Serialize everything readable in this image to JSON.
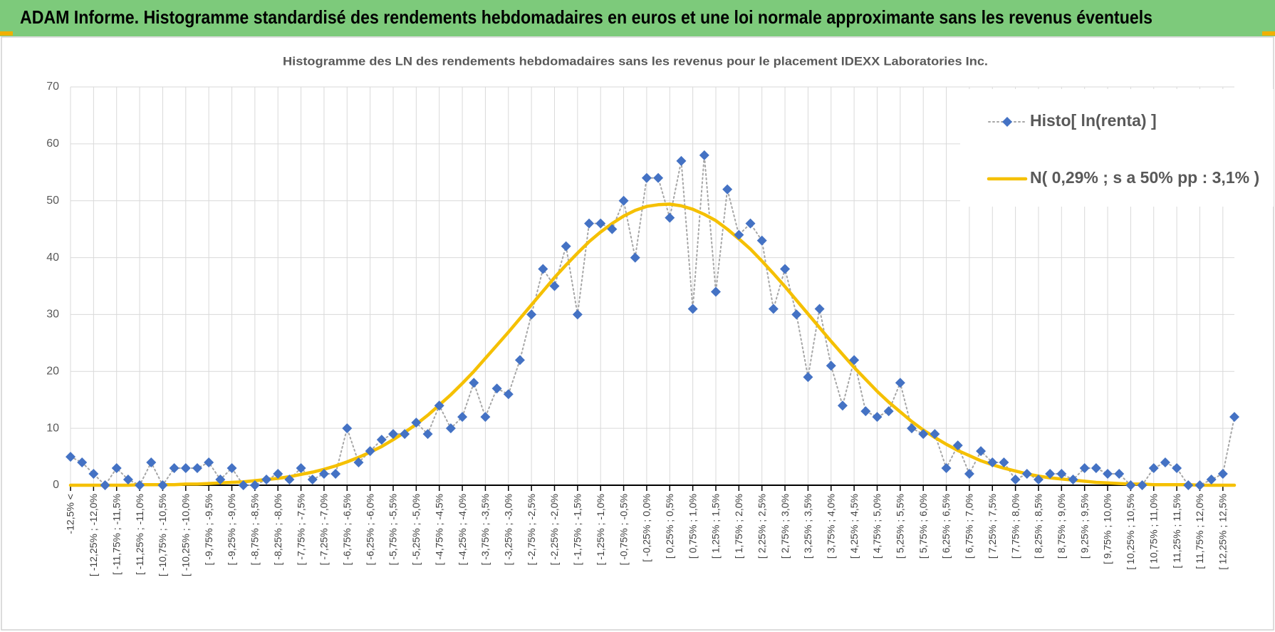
{
  "header": {
    "title": "ADAM Informe. Histogramme standardisé des rendements hebdomadaires en euros et une loi normale approximante sans les revenus éventuels"
  },
  "chart_data": {
    "type": "line",
    "title": "Histogramme des LN des rendements hebdomadaires sans les revenus pour le placement IDEXX Laboratories Inc.",
    "categories": [
      "-12,5% <",
      null,
      "[ -12,25% ; -12,0%",
      null,
      "[ -11,75% ; -11,5%",
      null,
      "[ -11,25% ; -11,0%",
      null,
      "[ -10,75% ; -10,5%",
      null,
      "[ -10,25% ; -10,0%",
      null,
      "[ -9,75% ; -9,5%",
      null,
      "[ -9,25% ; -9,0%",
      null,
      "[ -8,75% ; -8,5%",
      null,
      "[ -8,25% ; -8,0%",
      null,
      "[ -7,75% ; -7,5%",
      null,
      "[ -7,25% ; -7,0%",
      null,
      "[ -6,75% ; -6,5%",
      null,
      "[ -6,25% ; -6,0%",
      null,
      "[ -5,75% ; -5,5%",
      null,
      "[ -5,25% ; -5,0%",
      null,
      "[ -4,75% ; -4,5%",
      null,
      "[ -4,25% ; -4,0%",
      null,
      "[ -3,75% ; -3,5%",
      null,
      "[ -3,25% ; -3,0%",
      null,
      "[ -2,75% ; -2,5%",
      null,
      "[ -2,25% ; -2,0%",
      null,
      "[ -1,75% ; -1,5%",
      null,
      "[ -1,25% ; -1,0%",
      null,
      "[ -0,75% ; -0,5%",
      null,
      "[ -0,25% ; 0,0%",
      null,
      "[ 0,25% ; 0,5%",
      null,
      "[ 0,75% ; 1,0%",
      null,
      "[ 1,25% ; 1,5%",
      null,
      "[ 1,75% ; 2,0%",
      null,
      "[ 2,25% ; 2,5%",
      null,
      "[ 2,75% ; 3,0%",
      null,
      "[ 3,25% ; 3,5%",
      null,
      "[ 3,75% ; 4,0%",
      null,
      "[ 4,25% ; 4,5%",
      null,
      "[ 4,75% ; 5,0%",
      null,
      "[ 5,25% ; 5,5%",
      null,
      "[ 5,75% ; 6,0%",
      null,
      "[ 6,25% ; 6,5%",
      null,
      "[ 6,75% ; 7,0%",
      null,
      "[ 7,25% ; 7,5%",
      null,
      "[ 7,75% ; 8,0%",
      null,
      "[ 8,25% ; 8,5%",
      null,
      "[ 8,75% ; 9,0%",
      null,
      "[ 9,25% ; 9,5%",
      null,
      "[ 9,75% ; 10,0%",
      null,
      "[ 10,25% ; 10,5%",
      null,
      "[ 10,75% ; 11,0%",
      null,
      "[ 11,25% ; 11,5%",
      null,
      "[ 11,75% ; 12,0%",
      null,
      "[ 12,25% ; 12,5%",
      null
    ],
    "series": [
      {
        "name": "Histo[ ln(renta) ]",
        "color": "#4472c4",
        "line_color": "#a6a6a6",
        "line_style": "dotted",
        "marker": "diamond",
        "values": [
          5,
          4,
          2,
          0,
          3,
          1,
          0,
          4,
          0,
          3,
          3,
          3,
          4,
          1,
          3,
          0,
          0,
          1,
          2,
          1,
          3,
          1,
          2,
          2,
          10,
          4,
          6,
          8,
          9,
          9,
          11,
          9,
          14,
          10,
          12,
          18,
          12,
          17,
          16,
          22,
          30,
          38,
          35,
          42,
          30,
          46,
          46,
          45,
          50,
          40,
          54,
          54,
          47,
          57,
          31,
          58,
          34,
          52,
          44,
          46,
          43,
          31,
          38,
          30,
          19,
          31,
          21,
          14,
          22,
          13,
          12,
          13,
          18,
          10,
          9,
          9,
          3,
          7,
          2,
          6,
          4,
          4,
          1,
          2,
          1,
          2,
          2,
          1,
          3,
          3,
          2,
          2,
          0,
          0,
          3,
          4,
          3,
          0,
          0,
          1,
          2,
          12
        ]
      },
      {
        "name": "N( 0,29% ; s a 50% pp : 3,1% )",
        "color": "#f5c000",
        "line_style": "solid",
        "marker": "none",
        "values": [
          0,
          0,
          0,
          0,
          0,
          0,
          0.1,
          0.1,
          0.1,
          0.1,
          0.2,
          0.2,
          0.3,
          0.4,
          0.5,
          0.6,
          0.8,
          1.0,
          1.2,
          1.5,
          1.9,
          2.3,
          2.8,
          3.4,
          4.1,
          4.9,
          5.8,
          6.8,
          8.0,
          9.3,
          10.7,
          12.3,
          14.1,
          15.9,
          17.9,
          20.0,
          22.3,
          24.6,
          26.9,
          29.3,
          31.7,
          34.1,
          36.5,
          38.7,
          40.8,
          42.8,
          44.5,
          46.0,
          47.3,
          48.3,
          49.0,
          49.3,
          49.4,
          49.1,
          48.5,
          47.6,
          46.5,
          45.0,
          43.3,
          41.5,
          39.4,
          37.2,
          34.9,
          32.5,
          30.1,
          27.7,
          25.3,
          23.0,
          20.7,
          18.6,
          16.5,
          14.6,
          12.9,
          11.2,
          9.7,
          8.4,
          7.2,
          6.1,
          5.2,
          4.3,
          3.6,
          3.0,
          2.5,
          2.0,
          1.6,
          1.3,
          1.1,
          0.9,
          0.7,
          0.5,
          0.4,
          0.3,
          0.2,
          0.2,
          0.1,
          0.1,
          0.1,
          0.1,
          0,
          0,
          0,
          0
        ]
      }
    ],
    "ylim": [
      0,
      70
    ],
    "yticks": [
      0,
      10,
      20,
      30,
      40,
      50,
      60,
      70
    ],
    "grid": true,
    "legend": "top-right"
  }
}
